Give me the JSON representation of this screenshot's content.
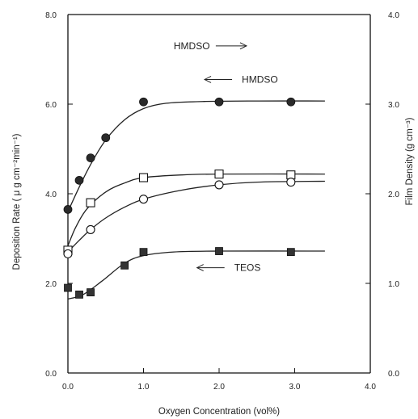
{
  "chart_data": {
    "type": "scatter",
    "title": "",
    "xlabel": "Oxygen  Concentration (vol%)",
    "ylabel_left": "Deposition Rate  ( μ g cm⁻²min⁻¹)",
    "ylabel_right": "Film Density  (g cm⁻³)",
    "xlim": [
      0.0,
      4.0
    ],
    "ylim_left": [
      0.0,
      8.0
    ],
    "ylim_right": [
      0.0,
      4.0
    ],
    "xticks": [
      "0.0",
      "1.0",
      "2.0",
      "3.0",
      "4.0"
    ],
    "yticks_left": [
      "0.0",
      "2.0",
      "4.0",
      "6.0",
      "8.0"
    ],
    "yticks_right": [
      "0.0",
      "1.0",
      "2.0",
      "3.0",
      "4.0"
    ],
    "grid": false,
    "series": [
      {
        "name": "HMDSO",
        "axis": "left",
        "marker": "filled-circle",
        "x": [
          0.0,
          0.15,
          0.3,
          0.5,
          1.0,
          2.0,
          2.95
        ],
        "y": [
          3.65,
          4.3,
          4.8,
          5.25,
          6.05,
          6.05,
          6.05
        ],
        "fit": [
          [
            0.0,
            3.6
          ],
          [
            0.15,
            4.15
          ],
          [
            0.3,
            4.65
          ],
          [
            0.5,
            5.2
          ],
          [
            0.75,
            5.65
          ],
          [
            1.0,
            5.9
          ],
          [
            1.3,
            6.02
          ],
          [
            1.8,
            6.06
          ],
          [
            2.5,
            6.07
          ],
          [
            3.4,
            6.07
          ]
        ]
      },
      {
        "name": "TEOS",
        "axis": "right",
        "marker": "open-square",
        "x": [
          0.0,
          0.3,
          1.0,
          2.0,
          2.95
        ],
        "y": [
          1.37,
          1.9,
          2.18,
          2.22,
          2.21
        ],
        "fit": [
          [
            0.0,
            1.42
          ],
          [
            0.1,
            1.62
          ],
          [
            0.25,
            1.83
          ],
          [
            0.5,
            2.02
          ],
          [
            0.75,
            2.12
          ],
          [
            1.0,
            2.18
          ],
          [
            1.5,
            2.21
          ],
          [
            2.0,
            2.22
          ],
          [
            3.4,
            2.22
          ]
        ]
      },
      {
        "name": "HMDSO",
        "axis": "right",
        "marker": "open-circle",
        "x": [
          0.0,
          0.3,
          1.0,
          2.0,
          2.95
        ],
        "y": [
          1.33,
          1.6,
          1.94,
          2.1,
          2.13
        ],
        "fit": [
          [
            0.0,
            1.35
          ],
          [
            0.15,
            1.48
          ],
          [
            0.3,
            1.6
          ],
          [
            0.5,
            1.73
          ],
          [
            0.75,
            1.85
          ],
          [
            1.0,
            1.94
          ],
          [
            1.5,
            2.04
          ],
          [
            2.0,
            2.1
          ],
          [
            2.5,
            2.13
          ],
          [
            3.4,
            2.14
          ]
        ]
      },
      {
        "name": "TEOS",
        "axis": "left",
        "marker": "filled-square",
        "x": [
          0.0,
          0.15,
          0.3,
          0.75,
          1.0,
          2.0,
          2.95
        ],
        "y": [
          1.9,
          1.75,
          1.8,
          2.4,
          2.7,
          2.72,
          2.7
        ],
        "fit": [
          [
            0.0,
            1.65
          ],
          [
            0.2,
            1.75
          ],
          [
            0.45,
            2.05
          ],
          [
            0.75,
            2.45
          ],
          [
            1.0,
            2.62
          ],
          [
            1.4,
            2.7
          ],
          [
            2.0,
            2.72
          ],
          [
            3.4,
            2.72
          ]
        ]
      }
    ],
    "annotations": [
      {
        "text": "HMDSO",
        "series": 0,
        "arrow": "left",
        "x": 2.3,
        "y": 6.55
      },
      {
        "text": "TEOS",
        "series": 1,
        "arrow": "right",
        "x": 1.35,
        "y": 4.75
      },
      {
        "text": "HMDSO",
        "series": 2,
        "arrow": "right",
        "x": 1.4,
        "y": 3.65
      },
      {
        "text": "TEOS",
        "series": 3,
        "arrow": "left",
        "x": 2.2,
        "y": 2.35
      }
    ]
  }
}
